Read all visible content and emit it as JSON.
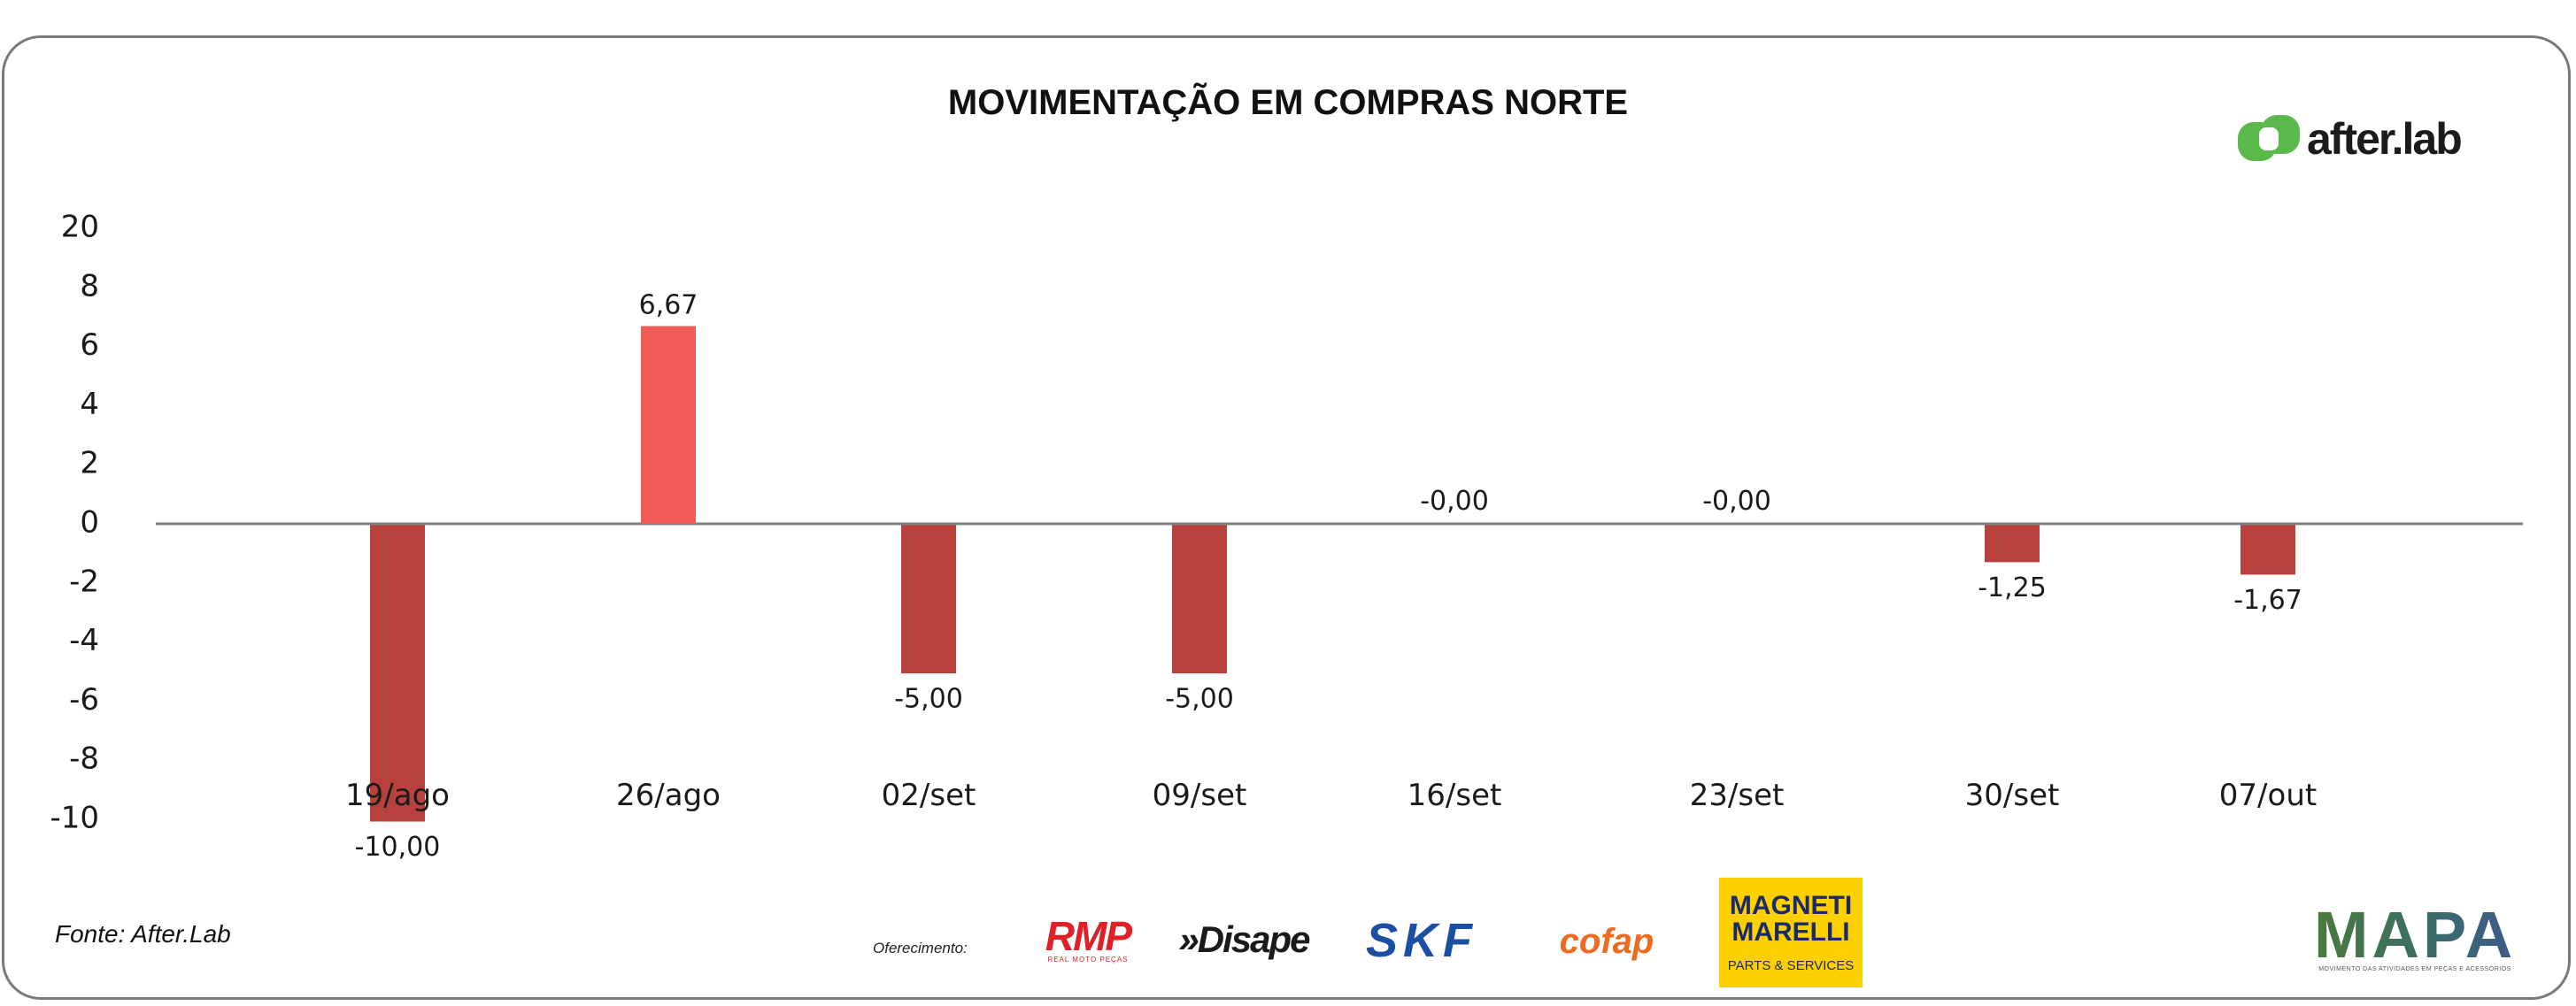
{
  "chart_data": {
    "type": "bar",
    "title": "MOVIMENTAÇÃO EM COMPRAS NORTE",
    "categories": [
      "19/ago",
      "26/ago",
      "02/set",
      "09/set",
      "16/set",
      "23/set",
      "30/set",
      "07/out"
    ],
    "values": [
      -10.0,
      6.67,
      -5.0,
      -5.0,
      -0.0,
      -0.0,
      -1.25,
      -1.67
    ],
    "value_labels": [
      "-10,00",
      "6,67",
      "-5,00",
      "-5,00",
      "-0,00",
      "-0,00",
      "-1,25",
      "-1,67"
    ],
    "y_ticks": [
      "20",
      "8",
      "6",
      "4",
      "2",
      "0",
      "-2",
      "-4",
      "-6",
      "-8",
      "-10"
    ],
    "xlabel": "",
    "ylabel": "",
    "grid": false,
    "legend": "none",
    "colors": {
      "positive": "#f05a57",
      "negative": "#b8403d",
      "axis": "#7f7f7f"
    }
  },
  "brand": {
    "name": "after.lab",
    "mark_color": "#5bb84a"
  },
  "source": "Fonte: After.Lab",
  "sponsors": {
    "label": "Oferecimento:",
    "rmp": {
      "name": "RMP",
      "tagline": "REAL MOTO PEÇAS"
    },
    "disape": {
      "name": "»Disape"
    },
    "skf": {
      "name": "SKF"
    },
    "cofap": {
      "name": "cofap"
    },
    "magneti": {
      "name_line1": "MAGNETI",
      "name_line2": "MARELLI",
      "tagline": "PARTS & SERVICES"
    },
    "mapa": {
      "name": "MAPA",
      "tagline": "MOVIMENTO DAS ATIVIDADES EM PEÇAS E ACESSÓRIOS"
    }
  }
}
